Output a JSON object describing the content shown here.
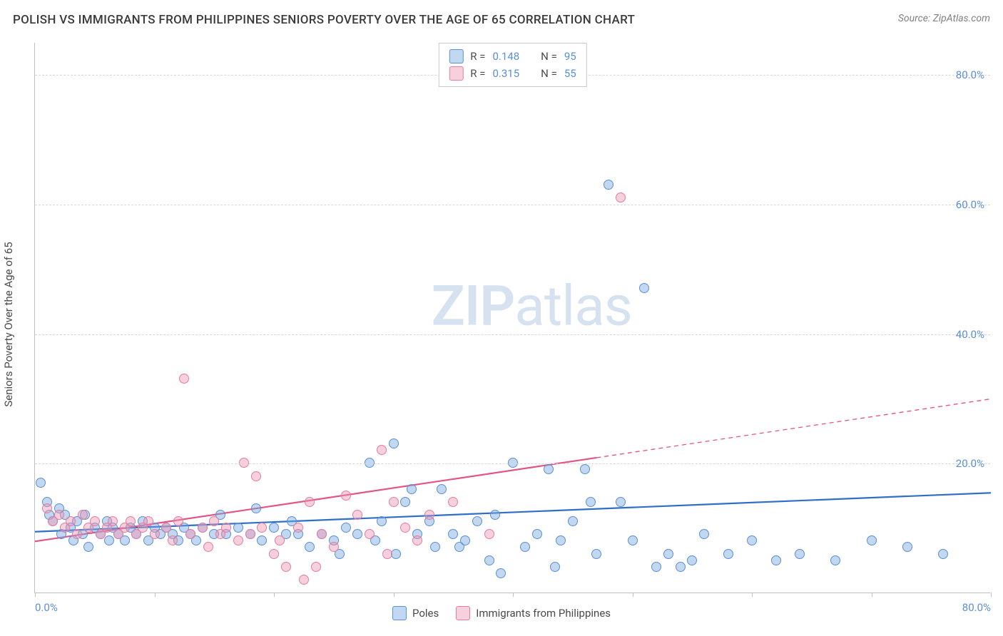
{
  "title": "POLISH VS IMMIGRANTS FROM PHILIPPINES SENIORS POVERTY OVER THE AGE OF 65 CORRELATION CHART",
  "source": "Source: ZipAtlas.com",
  "watermark_zip": "ZIP",
  "watermark_atlas": "atlas",
  "chart": {
    "type": "scatter",
    "ylabel": "Seniors Poverty Over the Age of 65",
    "xlim": [
      0,
      80
    ],
    "ylim": [
      0,
      85
    ],
    "y_ticks": [
      20,
      40,
      60,
      80
    ],
    "y_tick_labels": [
      "20.0%",
      "40.0%",
      "60.0%",
      "80.0%"
    ],
    "x_ticks": [
      0,
      10,
      20,
      30,
      40,
      50,
      60,
      70,
      80
    ],
    "x_tick_start_label": "0.0%",
    "x_tick_end_label": "80.0%",
    "background_color": "#ffffff",
    "grid_color": "#d8d8d8",
    "axis_color": "#c0c0c0",
    "tick_label_color": "#5b8fd6",
    "ylabel_color": "#4a4a4a",
    "point_radius": 7,
    "series": [
      {
        "id": "poles",
        "label": "Poles",
        "fill": "rgba(120,168,224,0.45)",
        "stroke": "#5b8fd6",
        "line_color": "#2f6fc9",
        "line_width": 2.2,
        "R": "0.148",
        "N": "95",
        "trend": {
          "x1": 0,
          "y1": 9.5,
          "x2": 80,
          "y2": 15.5,
          "solid_until_x": 80
        },
        "points": [
          [
            0.5,
            17
          ],
          [
            1,
            14
          ],
          [
            1.2,
            12
          ],
          [
            1.5,
            11
          ],
          [
            2,
            13
          ],
          [
            2.2,
            9
          ],
          [
            2.5,
            12
          ],
          [
            3,
            10
          ],
          [
            3.2,
            8
          ],
          [
            3.5,
            11
          ],
          [
            4,
            9
          ],
          [
            4.2,
            12
          ],
          [
            4.5,
            7
          ],
          [
            5,
            10
          ],
          [
            5.5,
            9
          ],
          [
            6,
            11
          ],
          [
            6.2,
            8
          ],
          [
            6.5,
            10
          ],
          [
            7,
            9
          ],
          [
            7.5,
            8
          ],
          [
            8,
            10
          ],
          [
            8.5,
            9
          ],
          [
            9,
            11
          ],
          [
            9.5,
            8
          ],
          [
            10,
            10
          ],
          [
            10.5,
            9
          ],
          [
            11,
            10
          ],
          [
            11.5,
            9
          ],
          [
            12,
            8
          ],
          [
            12.5,
            10
          ],
          [
            13,
            9
          ],
          [
            13.5,
            8
          ],
          [
            14,
            10
          ],
          [
            15,
            9
          ],
          [
            15.5,
            12
          ],
          [
            16,
            9
          ],
          [
            17,
            10
          ],
          [
            18,
            9
          ],
          [
            18.5,
            13
          ],
          [
            19,
            8
          ],
          [
            20,
            10
          ],
          [
            21,
            9
          ],
          [
            21.5,
            11
          ],
          [
            22,
            9
          ],
          [
            23,
            7
          ],
          [
            24,
            9
          ],
          [
            25,
            8
          ],
          [
            25.5,
            6
          ],
          [
            26,
            10
          ],
          [
            27,
            9
          ],
          [
            28,
            20
          ],
          [
            28.5,
            8
          ],
          [
            29,
            11
          ],
          [
            30,
            23
          ],
          [
            30.2,
            6
          ],
          [
            31,
            14
          ],
          [
            31.5,
            16
          ],
          [
            32,
            9
          ],
          [
            33,
            11
          ],
          [
            33.5,
            7
          ],
          [
            34,
            16
          ],
          [
            35,
            9
          ],
          [
            35.5,
            7
          ],
          [
            36,
            8
          ],
          [
            37,
            11
          ],
          [
            38,
            5
          ],
          [
            38.5,
            12
          ],
          [
            39,
            3
          ],
          [
            40,
            20
          ],
          [
            41,
            7
          ],
          [
            42,
            9
          ],
          [
            43,
            19
          ],
          [
            43.5,
            4
          ],
          [
            44,
            8
          ],
          [
            45,
            11
          ],
          [
            46,
            19
          ],
          [
            46.5,
            14
          ],
          [
            47,
            6
          ],
          [
            48,
            63
          ],
          [
            49,
            14
          ],
          [
            50,
            8
          ],
          [
            51,
            47
          ],
          [
            52,
            4
          ],
          [
            53,
            6
          ],
          [
            54,
            4
          ],
          [
            55,
            5
          ],
          [
            56,
            9
          ],
          [
            58,
            6
          ],
          [
            60,
            8
          ],
          [
            62,
            5
          ],
          [
            64,
            6
          ],
          [
            67,
            5
          ],
          [
            70,
            8
          ],
          [
            73,
            7
          ],
          [
            76,
            6
          ]
        ]
      },
      {
        "id": "philippines",
        "label": "Immigrants from Philippines",
        "fill": "rgba(236,150,178,0.45)",
        "stroke": "#e77ba0",
        "line_color": "#e25584",
        "line_width": 2.2,
        "R": "0.315",
        "N": "55",
        "trend": {
          "x1": 0,
          "y1": 8,
          "x2": 80,
          "y2": 30,
          "solid_until_x": 47
        },
        "points": [
          [
            1,
            13
          ],
          [
            1.5,
            11
          ],
          [
            2,
            12
          ],
          [
            2.5,
            10
          ],
          [
            3,
            11
          ],
          [
            3.5,
            9
          ],
          [
            4,
            12
          ],
          [
            4.5,
            10
          ],
          [
            5,
            11
          ],
          [
            5.5,
            9
          ],
          [
            6,
            10
          ],
          [
            6.5,
            11
          ],
          [
            7,
            9
          ],
          [
            7.5,
            10
          ],
          [
            8,
            11
          ],
          [
            8.5,
            9
          ],
          [
            9,
            10
          ],
          [
            9.5,
            11
          ],
          [
            10,
            9
          ],
          [
            11,
            10
          ],
          [
            11.5,
            8
          ],
          [
            12,
            11
          ],
          [
            12.5,
            33
          ],
          [
            13,
            9
          ],
          [
            14,
            10
          ],
          [
            14.5,
            7
          ],
          [
            15,
            11
          ],
          [
            15.5,
            9
          ],
          [
            16,
            10
          ],
          [
            17,
            8
          ],
          [
            17.5,
            20
          ],
          [
            18,
            9
          ],
          [
            18.5,
            18
          ],
          [
            19,
            10
          ],
          [
            20,
            6
          ],
          [
            20.5,
            8
          ],
          [
            21,
            4
          ],
          [
            22,
            10
          ],
          [
            22.5,
            2
          ],
          [
            23,
            14
          ],
          [
            23.5,
            4
          ],
          [
            24,
            9
          ],
          [
            25,
            7
          ],
          [
            26,
            15
          ],
          [
            27,
            12
          ],
          [
            28,
            9
          ],
          [
            29,
            22
          ],
          [
            29.5,
            6
          ],
          [
            30,
            14
          ],
          [
            31,
            10
          ],
          [
            32,
            8
          ],
          [
            33,
            12
          ],
          [
            35,
            14
          ],
          [
            38,
            9
          ],
          [
            49,
            61
          ]
        ]
      }
    ]
  },
  "legend_top_label_R": "R =",
  "legend_top_label_N": "N =",
  "legend_bottom": [
    "Poles",
    "Immigrants from Philippines"
  ]
}
